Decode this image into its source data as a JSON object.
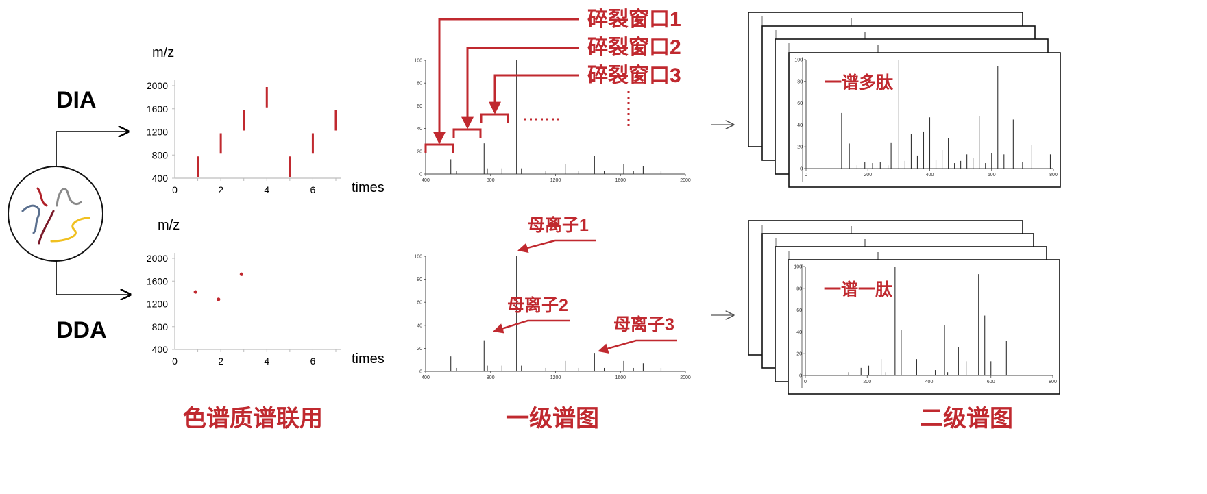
{
  "labels": {
    "dia": "DIA",
    "dda": "DDA",
    "lc_ms": "色谱质谱联用",
    "ms1": "一级谱图",
    "ms2": "二级谱图",
    "many_peptides": "一谱多肽",
    "one_peptide": "一谱一肽"
  },
  "windows": [
    "碎裂窗口1",
    "碎裂窗口2",
    "碎裂窗口3"
  ],
  "precursors": [
    "母离子1",
    "母离子2",
    "母离子3"
  ],
  "colors": {
    "accent_red": "#c0292f",
    "dia_mark": "#c0292f",
    "dda_mark": "#c0292f",
    "mol_red": "#b02028",
    "mol_blue": "#5a6f8e",
    "mol_gray": "#8a8a8a",
    "mol_yellow": "#f0c020",
    "mol_darkred": "#7a1a2a"
  },
  "chart_data": [
    {
      "id": "dia",
      "type": "scatter",
      "xlabel": "times",
      "ylabel": "m/z",
      "xlim": [
        0,
        7
      ],
      "ylim": [
        400,
        2000
      ],
      "xticks": [
        0,
        2,
        4,
        6
      ],
      "yticks": [
        400,
        800,
        1200,
        1600,
        2000
      ],
      "segments": [
        {
          "x": 1,
          "y0": 400,
          "y1": 800
        },
        {
          "x": 2,
          "y0": 800,
          "y1": 1200
        },
        {
          "x": 3,
          "y0": 1200,
          "y1": 1600
        },
        {
          "x": 4,
          "y0": 1600,
          "y1": 2000
        },
        {
          "x": 5,
          "y0": 400,
          "y1": 800
        },
        {
          "x": 6,
          "y0": 800,
          "y1": 1200
        },
        {
          "x": 7,
          "y0": 1200,
          "y1": 1600
        }
      ]
    },
    {
      "id": "dda",
      "type": "scatter",
      "xlabel": "times",
      "ylabel": "m/z",
      "xlim": [
        0,
        7
      ],
      "ylim": [
        400,
        2000
      ],
      "xticks": [
        0,
        2,
        4,
        6
      ],
      "yticks": [
        400,
        800,
        1200,
        1600,
        2000
      ],
      "points": [
        {
          "x": 0.9,
          "y": 1410
        },
        {
          "x": 1.9,
          "y": 1280
        },
        {
          "x": 2.9,
          "y": 1720
        }
      ]
    },
    {
      "id": "ms1_top",
      "type": "bar",
      "xlim": [
        400,
        2000
      ],
      "ylim": [
        0,
        100
      ],
      "xticks": [
        400,
        800,
        1200,
        1600,
        2000
      ],
      "yticks": [
        0,
        20,
        40,
        60,
        80,
        100
      ],
      "peaks": [
        [
          555,
          13
        ],
        [
          590,
          3
        ],
        [
          760,
          27
        ],
        [
          780,
          5
        ],
        [
          870,
          5
        ],
        [
          960,
          100
        ],
        [
          990,
          5
        ],
        [
          1140,
          3
        ],
        [
          1260,
          9
        ],
        [
          1340,
          3
        ],
        [
          1440,
          16
        ],
        [
          1500,
          3
        ],
        [
          1620,
          9
        ],
        [
          1680,
          3
        ],
        [
          1740,
          7
        ],
        [
          1850,
          3
        ]
      ]
    },
    {
      "id": "ms1_bottom",
      "type": "bar",
      "xlim": [
        400,
        2000
      ],
      "ylim": [
        0,
        100
      ],
      "xticks": [
        400,
        800,
        1200,
        1600,
        2000
      ],
      "yticks": [
        0,
        20,
        40,
        60,
        80,
        100
      ],
      "peaks": [
        [
          555,
          13
        ],
        [
          590,
          3
        ],
        [
          760,
          27
        ],
        [
          780,
          5
        ],
        [
          870,
          5
        ],
        [
          960,
          100
        ],
        [
          990,
          5
        ],
        [
          1140,
          3
        ],
        [
          1260,
          9
        ],
        [
          1340,
          3
        ],
        [
          1440,
          16
        ],
        [
          1500,
          3
        ],
        [
          1620,
          9
        ],
        [
          1680,
          3
        ],
        [
          1740,
          7
        ],
        [
          1850,
          3
        ]
      ]
    },
    {
      "id": "ms2_many",
      "type": "bar",
      "xlim": [
        0,
        800
      ],
      "ylim": [
        0,
        100
      ],
      "xticks": [
        0,
        200,
        400,
        600,
        800
      ],
      "yticks": [
        0,
        20,
        40,
        60,
        80,
        100
      ],
      "peaks": [
        [
          115,
          51
        ],
        [
          140,
          23
        ],
        [
          165,
          3
        ],
        [
          190,
          6
        ],
        [
          215,
          5
        ],
        [
          240,
          6
        ],
        [
          265,
          3
        ],
        [
          275,
          24
        ],
        [
          300,
          100
        ],
        [
          320,
          7
        ],
        [
          340,
          32
        ],
        [
          360,
          12
        ],
        [
          380,
          34
        ],
        [
          400,
          47
        ],
        [
          420,
          8
        ],
        [
          440,
          17
        ],
        [
          460,
          28
        ],
        [
          480,
          5
        ],
        [
          500,
          7
        ],
        [
          520,
          13
        ],
        [
          540,
          10
        ],
        [
          560,
          48
        ],
        [
          580,
          5
        ],
        [
          600,
          14
        ],
        [
          620,
          94
        ],
        [
          640,
          13
        ],
        [
          670,
          45
        ],
        [
          700,
          6
        ],
        [
          730,
          22
        ],
        [
          790,
          13
        ]
      ]
    },
    {
      "id": "ms2_one",
      "type": "bar",
      "xlim": [
        0,
        800
      ],
      "ylim": [
        0,
        100
      ],
      "xticks": [
        0,
        200,
        400,
        600,
        800
      ],
      "yticks": [
        0,
        20,
        40,
        60,
        80,
        100
      ],
      "peaks": [
        [
          140,
          3
        ],
        [
          180,
          7
        ],
        [
          205,
          9
        ],
        [
          245,
          15
        ],
        [
          260,
          3
        ],
        [
          290,
          100
        ],
        [
          310,
          42
        ],
        [
          360,
          15
        ],
        [
          420,
          5
        ],
        [
          450,
          46
        ],
        [
          460,
          3
        ],
        [
          495,
          26
        ],
        [
          520,
          13
        ],
        [
          560,
          93
        ],
        [
          580,
          55
        ],
        [
          600,
          13
        ],
        [
          650,
          32
        ]
      ]
    }
  ]
}
